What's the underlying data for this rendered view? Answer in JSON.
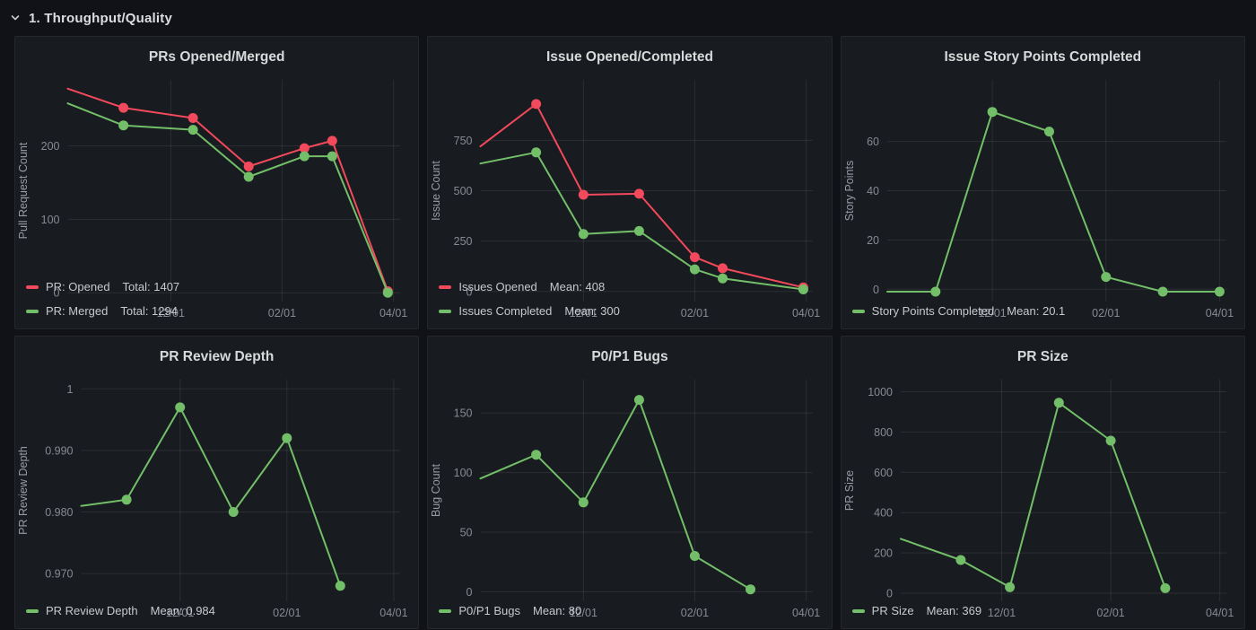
{
  "header": {
    "title": "1. Throughput/Quality"
  },
  "colors": {
    "page_bg": "#111217",
    "panel_bg": "#181b1f",
    "red": "#F2495C",
    "green": "#73BF69",
    "title_text": "#d8d9da",
    "legend_text": "#c8c9ce"
  },
  "chart_data": [
    {
      "type": "line",
      "title": "PRs Opened/Merged",
      "ylabel": "Pull Request Count",
      "xlim": [
        -0.85,
        5.12
      ],
      "ylim": [
        -12,
        290
      ],
      "yticks": [
        {
          "v": 0,
          "label": "0"
        },
        {
          "v": 100,
          "label": "100"
        },
        {
          "v": 200,
          "label": "200"
        }
      ],
      "xticks": [
        {
          "v": 1,
          "label": "12/01"
        },
        {
          "v": 3,
          "label": "02/01"
        },
        {
          "v": 5,
          "label": "04/01"
        }
      ],
      "grid": true,
      "legend_position": "bottom-left",
      "series": [
        {
          "name": "PR: Opened",
          "stat": "Total: 1407",
          "color": "#F2495C",
          "lead": [
            -0.85,
            278
          ],
          "points": [
            [
              0.15,
              252
            ],
            [
              1.4,
              238
            ],
            [
              2.4,
              172
            ],
            [
              3.4,
              197
            ],
            [
              3.9,
              207
            ],
            [
              4.9,
              2
            ]
          ]
        },
        {
          "name": "PR: Merged",
          "stat": "Total: 1294",
          "color": "#73BF69",
          "lead": [
            -0.85,
            258
          ],
          "points": [
            [
              0.15,
              228
            ],
            [
              1.4,
              222
            ],
            [
              2.4,
              158
            ],
            [
              3.4,
              186
            ],
            [
              3.9,
              186
            ],
            [
              4.9,
              0
            ]
          ]
        }
      ]
    },
    {
      "type": "line",
      "title": "Issue Opened/Completed",
      "ylabel": "Issue Count",
      "xlim": [
        -0.85,
        5.12
      ],
      "ylim": [
        -50,
        1050
      ],
      "yticks": [
        {
          "v": 0,
          "label": "0"
        },
        {
          "v": 250,
          "label": "250"
        },
        {
          "v": 500,
          "label": "500"
        },
        {
          "v": 750,
          "label": "750"
        }
      ],
      "xticks": [
        {
          "v": 1,
          "label": "12/01"
        },
        {
          "v": 3,
          "label": "02/01"
        },
        {
          "v": 5,
          "label": "04/01"
        }
      ],
      "grid": true,
      "legend_position": "bottom-left",
      "series": [
        {
          "name": "Issues Opened",
          "stat": "Mean: 408",
          "color": "#F2495C",
          "lead": [
            -0.85,
            720
          ],
          "points": [
            [
              0.15,
              930
            ],
            [
              1,
              480
            ],
            [
              2,
              485
            ],
            [
              3,
              170
            ],
            [
              3.5,
              115
            ],
            [
              4.95,
              20
            ]
          ]
        },
        {
          "name": "Issues Completed",
          "stat": "Mean: 300",
          "color": "#73BF69",
          "lead": [
            -0.85,
            635
          ],
          "points": [
            [
              0.15,
              690
            ],
            [
              1,
              285
            ],
            [
              2,
              300
            ],
            [
              3,
              110
            ],
            [
              3.5,
              65
            ],
            [
              4.95,
              10
            ]
          ]
        }
      ]
    },
    {
      "type": "line",
      "title": "Issue Story Points Completed",
      "ylabel": "Story Points",
      "xlim": [
        -0.85,
        5.12
      ],
      "ylim": [
        -5,
        85
      ],
      "yticks": [
        {
          "v": 0,
          "label": "0"
        },
        {
          "v": 20,
          "label": "20"
        },
        {
          "v": 40,
          "label": "40"
        },
        {
          "v": 60,
          "label": "60"
        }
      ],
      "xticks": [
        {
          "v": 1,
          "label": "12/01"
        },
        {
          "v": 3,
          "label": "02/01"
        },
        {
          "v": 5,
          "label": "04/01"
        }
      ],
      "grid": true,
      "legend_position": "bottom-left",
      "series": [
        {
          "name": "Story Points Completed",
          "stat": "Mean: 20.1",
          "color": "#73BF69",
          "lead": [
            -0.85,
            -1
          ],
          "points": [
            [
              0,
              -1
            ],
            [
              1,
              72
            ],
            [
              2,
              64
            ],
            [
              3,
              5
            ],
            [
              4,
              -1
            ],
            [
              5,
              -1
            ]
          ]
        }
      ]
    },
    {
      "type": "line",
      "title": "PR Review Depth",
      "ylabel": "PR Review Depth",
      "xlim": [
        -0.85,
        5.12
      ],
      "ylim": [
        0.9655,
        1.0015
      ],
      "yticks": [
        {
          "v": 0.97,
          "label": "0.970"
        },
        {
          "v": 0.98,
          "label": "0.980"
        },
        {
          "v": 0.99,
          "label": "0.990"
        },
        {
          "v": 1,
          "label": "1"
        }
      ],
      "xticks": [
        {
          "v": 1,
          "label": "12/01"
        },
        {
          "v": 3,
          "label": "02/01"
        },
        {
          "v": 5,
          "label": "04/01"
        }
      ],
      "grid": true,
      "legend_position": "bottom-left",
      "series": [
        {
          "name": "PR Review Depth",
          "stat": "Mean: 0.984",
          "color": "#73BF69",
          "lead": [
            -0.85,
            0.981
          ],
          "points": [
            [
              0,
              0.982
            ],
            [
              1,
              0.997
            ],
            [
              2,
              0.98
            ],
            [
              3,
              0.992
            ],
            [
              4,
              0.968
            ]
          ]
        }
      ]
    },
    {
      "type": "line",
      "title": "P0/P1 Bugs",
      "ylabel": "Bug Count",
      "xlim": [
        -0.85,
        5.12
      ],
      "ylim": [
        -8,
        178
      ],
      "yticks": [
        {
          "v": 0,
          "label": "0"
        },
        {
          "v": 50,
          "label": "50"
        },
        {
          "v": 100,
          "label": "100"
        },
        {
          "v": 150,
          "label": "150"
        }
      ],
      "xticks": [
        {
          "v": 1,
          "label": "12/01"
        },
        {
          "v": 3,
          "label": "02/01"
        },
        {
          "v": 5,
          "label": "04/01"
        }
      ],
      "grid": true,
      "legend_position": "bottom-left",
      "series": [
        {
          "name": "P0/P1 Bugs",
          "stat": "Mean: 80",
          "color": "#73BF69",
          "lead": [
            -0.85,
            95
          ],
          "points": [
            [
              0.15,
              115
            ],
            [
              1,
              75
            ],
            [
              2,
              161
            ],
            [
              3,
              30
            ],
            [
              4,
              2
            ]
          ]
        }
      ]
    },
    {
      "type": "line",
      "title": "PR Size",
      "ylabel": "PR Size",
      "xlim": [
        -0.85,
        5.12
      ],
      "ylim": [
        -40,
        1060
      ],
      "yticks": [
        {
          "v": 0,
          "label": "0"
        },
        {
          "v": 200,
          "label": "200"
        },
        {
          "v": 400,
          "label": "400"
        },
        {
          "v": 600,
          "label": "600"
        },
        {
          "v": 800,
          "label": "800"
        },
        {
          "v": 1000,
          "label": "1000"
        }
      ],
      "xticks": [
        {
          "v": 1,
          "label": "12/01"
        },
        {
          "v": 3,
          "label": "02/01"
        },
        {
          "v": 5,
          "label": "04/01"
        }
      ],
      "grid": true,
      "legend_position": "bottom-left",
      "series": [
        {
          "name": "PR Size",
          "stat": "Mean: 369",
          "color": "#73BF69",
          "lead": [
            -0.85,
            270
          ],
          "points": [
            [
              0.25,
              165
            ],
            [
              1.15,
              30
            ],
            [
              2.05,
              945
            ],
            [
              3,
              757
            ],
            [
              4,
              25
            ]
          ]
        }
      ]
    }
  ]
}
